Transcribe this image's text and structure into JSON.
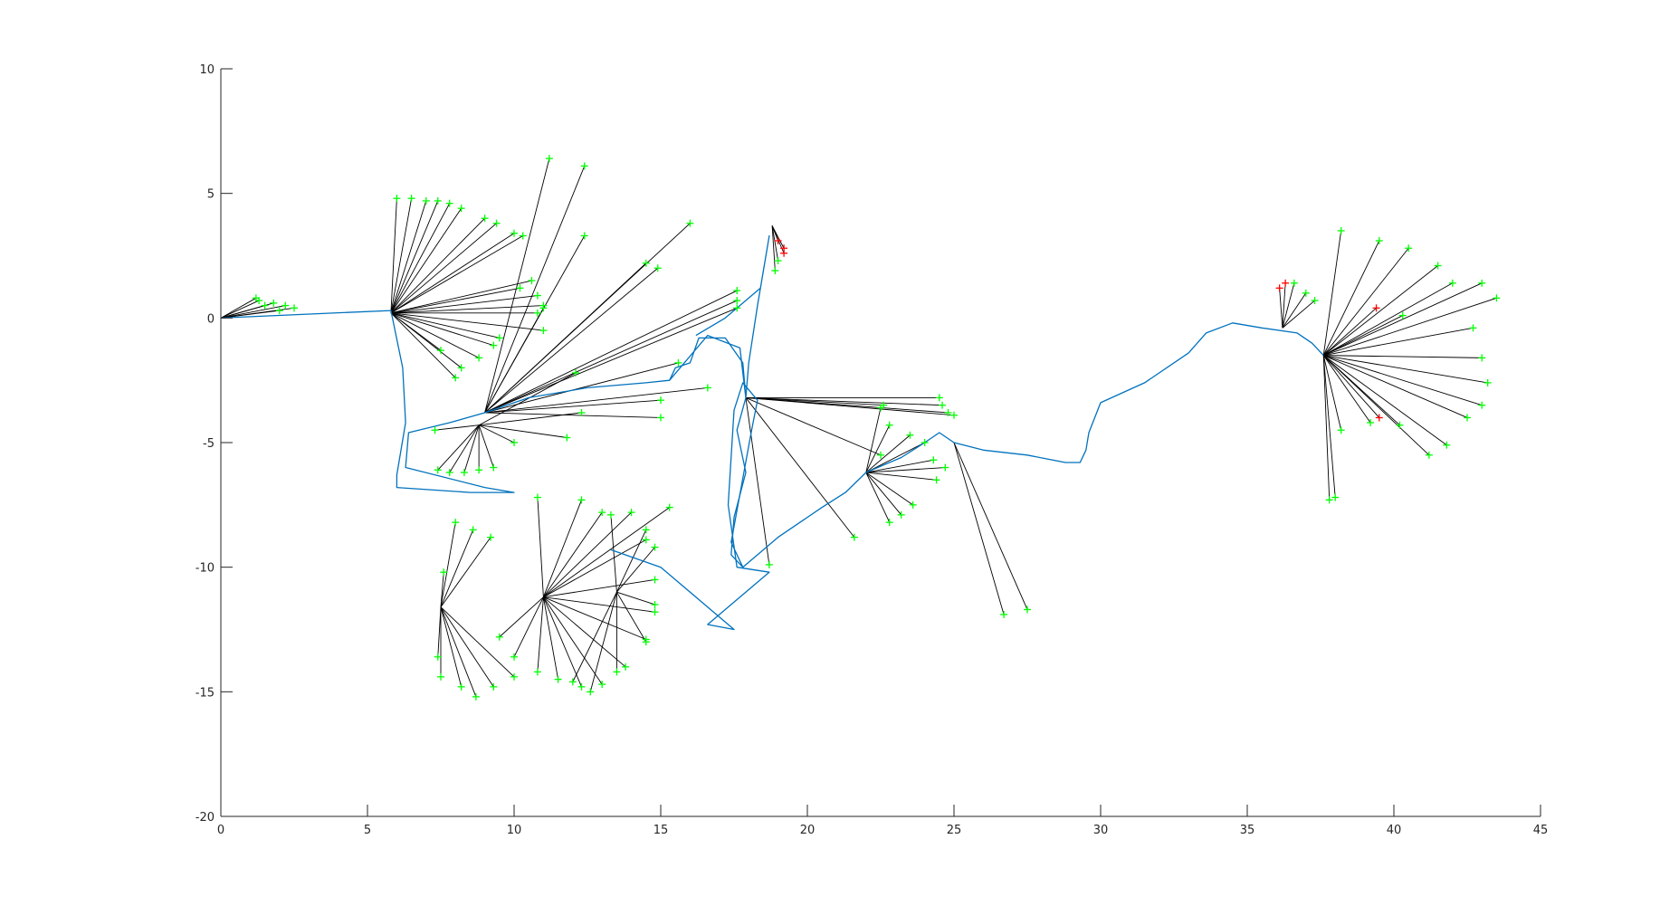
{
  "chart_data": {
    "type": "scatter",
    "title": "",
    "xlabel": "",
    "ylabel": "",
    "xlim": [
      0,
      45
    ],
    "ylim": [
      -20,
      10
    ],
    "xticks": [
      "0",
      "5",
      "10",
      "15",
      "20",
      "25",
      "30",
      "35",
      "40",
      "45"
    ],
    "yticks": [
      "10",
      "5",
      "0",
      "-5",
      "-10",
      "-15",
      "-20"
    ],
    "grid": false,
    "legend": "none",
    "colors": {
      "trajectory": "#0072BD",
      "ray": "#000000",
      "landmark": "#00FF00",
      "landmark_alt": "#FF0000",
      "axis": "#262626"
    },
    "trajectory": [
      [
        0,
        0
      ],
      [
        5.8,
        0.3
      ],
      [
        6.2,
        -2
      ],
      [
        6.3,
        -4.2
      ],
      [
        6.0,
        -6.3
      ],
      [
        6.0,
        -6.8
      ],
      [
        8.5,
        -7.0
      ],
      [
        10.0,
        -7.0
      ],
      [
        9.0,
        -6.8
      ],
      [
        6.3,
        -6.0
      ],
      [
        6.4,
        -4.6
      ],
      [
        7.8,
        -4.2
      ],
      [
        9.0,
        -3.8
      ],
      [
        10.5,
        -3.2
      ],
      [
        12.5,
        -2.8
      ],
      [
        14.5,
        -2.6
      ],
      [
        15.3,
        -2.5
      ],
      [
        15.5,
        -2.0
      ],
      [
        16.0,
        -1.8
      ],
      [
        16.3,
        -0.8
      ],
      [
        17.2,
        -0.8
      ],
      [
        17.8,
        -1.8
      ],
      [
        17.9,
        -3.2
      ],
      [
        17.6,
        -4.5
      ],
      [
        17.9,
        -6.2
      ],
      [
        17.5,
        -8.0
      ],
      [
        17.4,
        -9.5
      ],
      [
        17.8,
        -10.0
      ],
      [
        19.0,
        -8.8
      ],
      [
        20.5,
        -7.6
      ],
      [
        21.3,
        -7.0
      ],
      [
        22.0,
        -6.2
      ],
      [
        23.2,
        -5.6
      ],
      [
        24.0,
        -5.0
      ],
      [
        24.5,
        -4.6
      ],
      [
        25.0,
        -5.0
      ],
      [
        26.0,
        -5.3
      ],
      [
        27.5,
        -5.5
      ],
      [
        28.8,
        -5.8
      ],
      [
        29.3,
        -5.8
      ],
      [
        29.5,
        -5.3
      ],
      [
        29.6,
        -4.6
      ],
      [
        30.0,
        -3.4
      ],
      [
        31.5,
        -2.6
      ],
      [
        33.0,
        -1.4
      ],
      [
        33.6,
        -0.6
      ],
      [
        34.5,
        -0.2
      ],
      [
        35.5,
        -0.4
      ],
      [
        36.7,
        -0.6
      ],
      [
        37.2,
        -1.0
      ],
      [
        37.6,
        -1.5
      ]
    ],
    "trajectory_branch": [
      [
        15.3,
        -2.5
      ],
      [
        16.6,
        -0.7
      ],
      [
        17.7,
        -1.2
      ],
      [
        17.8,
        -2.2
      ],
      [
        17.9,
        -3.2
      ],
      [
        18.0,
        -1.8
      ],
      [
        18.3,
        0.5
      ],
      [
        18.7,
        3.3
      ],
      [
        18.4,
        1.2
      ],
      [
        17.2,
        0.0
      ],
      [
        16.2,
        -0.7
      ]
    ],
    "trajectory_tail": [
      [
        17.8,
        -10.0
      ],
      [
        17.4,
        -9.0
      ],
      [
        18.1,
        -4.5
      ],
      [
        18.3,
        -3.3
      ],
      [
        17.8,
        -2.6
      ],
      [
        17.5,
        -3.7
      ],
      [
        17.3,
        -7.5
      ],
      [
        17.6,
        -10.0
      ],
      [
        18.7,
        -10.2
      ],
      [
        16.6,
        -12.3
      ],
      [
        17.5,
        -12.5
      ],
      [
        15.0,
        -10.0
      ],
      [
        13.3,
        -9.3
      ]
    ],
    "observation_hubs": [
      {
        "pose": [
          0,
          0
        ],
        "landmarks": [
          [
            1.2,
            0.8
          ],
          [
            1.3,
            0.7
          ],
          [
            1.8,
            0.6
          ],
          [
            2.2,
            0.5
          ],
          [
            2.5,
            0.4
          ],
          [
            1.5,
            0.5
          ],
          [
            2.0,
            0.3
          ]
        ]
      },
      {
        "pose": [
          5.8,
          0.2
        ],
        "landmarks": [
          [
            6.0,
            4.8
          ],
          [
            6.5,
            4.8
          ],
          [
            7.0,
            4.7
          ],
          [
            7.4,
            4.7
          ],
          [
            7.8,
            4.6
          ],
          [
            8.2,
            4.4
          ],
          [
            9.0,
            4.0
          ],
          [
            9.4,
            3.8
          ],
          [
            10.0,
            3.4
          ],
          [
            10.3,
            3.3
          ],
          [
            10.8,
            0.9
          ],
          [
            11.0,
            0.5
          ],
          [
            10.8,
            0.2
          ],
          [
            11.0,
            -0.5
          ],
          [
            9.5,
            -0.8
          ],
          [
            9.3,
            -1.1
          ],
          [
            8.8,
            -1.6
          ],
          [
            8.2,
            -2.0
          ],
          [
            8.0,
            -2.4
          ],
          [
            7.5,
            -1.3
          ],
          [
            10.6,
            1.5
          ],
          [
            10.2,
            1.2
          ]
        ]
      },
      {
        "pose": [
          9.0,
          -3.8
        ],
        "landmarks": [
          [
            11.2,
            6.4
          ],
          [
            12.4,
            6.1
          ],
          [
            12.4,
            3.3
          ],
          [
            16.0,
            3.8
          ],
          [
            14.5,
            2.2
          ],
          [
            14.9,
            2.0
          ],
          [
            17.6,
            1.1
          ],
          [
            17.6,
            0.7
          ],
          [
            17.6,
            0.4
          ],
          [
            15.6,
            -1.8
          ],
          [
            16.6,
            -2.8
          ],
          [
            15.0,
            -3.3
          ],
          [
            15.0,
            -4.0
          ],
          [
            11.0,
            0.4
          ]
        ]
      },
      {
        "pose": [
          8.8,
          -4.3
        ],
        "landmarks": [
          [
            7.3,
            -4.5
          ],
          [
            7.4,
            -6.1
          ],
          [
            7.8,
            -6.2
          ],
          [
            8.3,
            -6.2
          ],
          [
            8.8,
            -6.1
          ],
          [
            9.3,
            -6.0
          ],
          [
            10.0,
            -5.0
          ],
          [
            11.8,
            -4.8
          ],
          [
            12.3,
            -3.8
          ],
          [
            12.1,
            -2.2
          ]
        ]
      },
      {
        "pose": [
          7.5,
          -11.6
        ],
        "landmarks": [
          [
            7.6,
            -10.2
          ],
          [
            8.0,
            -8.2
          ],
          [
            8.6,
            -8.5
          ],
          [
            9.2,
            -8.8
          ],
          [
            7.4,
            -13.6
          ],
          [
            7.5,
            -14.4
          ],
          [
            8.2,
            -14.8
          ],
          [
            8.7,
            -15.2
          ],
          [
            9.3,
            -14.8
          ],
          [
            10.0,
            -14.4
          ]
        ]
      },
      {
        "pose": [
          11.0,
          -11.2
        ],
        "landmarks": [
          [
            10.8,
            -7.2
          ],
          [
            12.3,
            -7.3
          ],
          [
            13.0,
            -7.8
          ],
          [
            14.0,
            -7.8
          ],
          [
            14.5,
            -8.9
          ],
          [
            14.8,
            -10.5
          ],
          [
            14.8,
            -11.8
          ],
          [
            14.5,
            -12.9
          ],
          [
            13.8,
            -14.0
          ],
          [
            13.0,
            -14.7
          ],
          [
            12.3,
            -14.8
          ],
          [
            11.5,
            -14.5
          ],
          [
            10.8,
            -14.2
          ],
          [
            10.0,
            -13.6
          ],
          [
            9.5,
            -12.8
          ],
          [
            15.3,
            -7.6
          ]
        ]
      },
      {
        "pose": [
          13.5,
          -11.0
        ],
        "landmarks": [
          [
            13.3,
            -7.9
          ],
          [
            14.5,
            -8.5
          ],
          [
            14.8,
            -9.2
          ],
          [
            14.8,
            -11.5
          ],
          [
            14.5,
            -13.0
          ],
          [
            13.5,
            -14.2
          ],
          [
            12.6,
            -15.0
          ],
          [
            12.0,
            -14.6
          ]
        ]
      },
      {
        "pose": [
          18.8,
          3.7
        ],
        "landmarks": [
          [
            19.0,
            3.1
          ],
          [
            19.2,
            2.8
          ],
          [
            19.2,
            2.6
          ],
          [
            19.0,
            2.3
          ],
          [
            18.9,
            1.9
          ]
        ]
      },
      {
        "pose": [
          17.9,
          -3.2
        ],
        "landmarks": [
          [
            24.5,
            -3.2
          ],
          [
            24.6,
            -3.5
          ],
          [
            24.8,
            -3.8
          ],
          [
            25.0,
            -3.9
          ],
          [
            22.6,
            -3.5
          ],
          [
            21.6,
            -8.8
          ],
          [
            18.7,
            -9.9
          ],
          [
            22.5,
            -5.5
          ]
        ]
      },
      {
        "pose": [
          22.0,
          -6.2
        ],
        "landmarks": [
          [
            22.5,
            -3.6
          ],
          [
            22.8,
            -4.3
          ],
          [
            23.5,
            -4.7
          ],
          [
            24.0,
            -5.0
          ],
          [
            24.3,
            -5.7
          ],
          [
            24.7,
            -6.0
          ],
          [
            24.4,
            -6.5
          ],
          [
            23.6,
            -7.5
          ],
          [
            23.2,
            -7.9
          ],
          [
            22.8,
            -8.2
          ]
        ]
      },
      {
        "pose": [
          25.0,
          -5.0
        ],
        "landmarks": [
          [
            26.7,
            -11.9
          ],
          [
            27.5,
            -11.7
          ]
        ]
      },
      {
        "pose": [
          36.2,
          -0.4
        ],
        "landmarks": [
          [
            36.3,
            1.4
          ],
          [
            36.6,
            1.4
          ],
          [
            37.0,
            1.0
          ],
          [
            37.3,
            0.7
          ],
          [
            36.1,
            1.2
          ]
        ]
      },
      {
        "pose": [
          37.6,
          -1.5
        ],
        "landmarks": [
          [
            38.2,
            3.5
          ],
          [
            39.5,
            3.1
          ],
          [
            40.5,
            2.8
          ],
          [
            41.5,
            2.1
          ],
          [
            42.0,
            1.4
          ],
          [
            43.0,
            1.4
          ],
          [
            43.5,
            0.8
          ],
          [
            42.7,
            -0.4
          ],
          [
            43.0,
            -1.6
          ],
          [
            43.2,
            -2.6
          ],
          [
            43.0,
            -3.5
          ],
          [
            42.5,
            -4.0
          ],
          [
            41.8,
            -5.1
          ],
          [
            41.2,
            -5.5
          ],
          [
            40.2,
            -4.3
          ],
          [
            39.2,
            -4.2
          ],
          [
            38.2,
            -4.5
          ],
          [
            38.0,
            -7.2
          ],
          [
            37.8,
            -7.3
          ],
          [
            39.4,
            0.4
          ],
          [
            40.3,
            0.1
          ],
          [
            39.5,
            -4.0
          ]
        ]
      }
    ]
  }
}
